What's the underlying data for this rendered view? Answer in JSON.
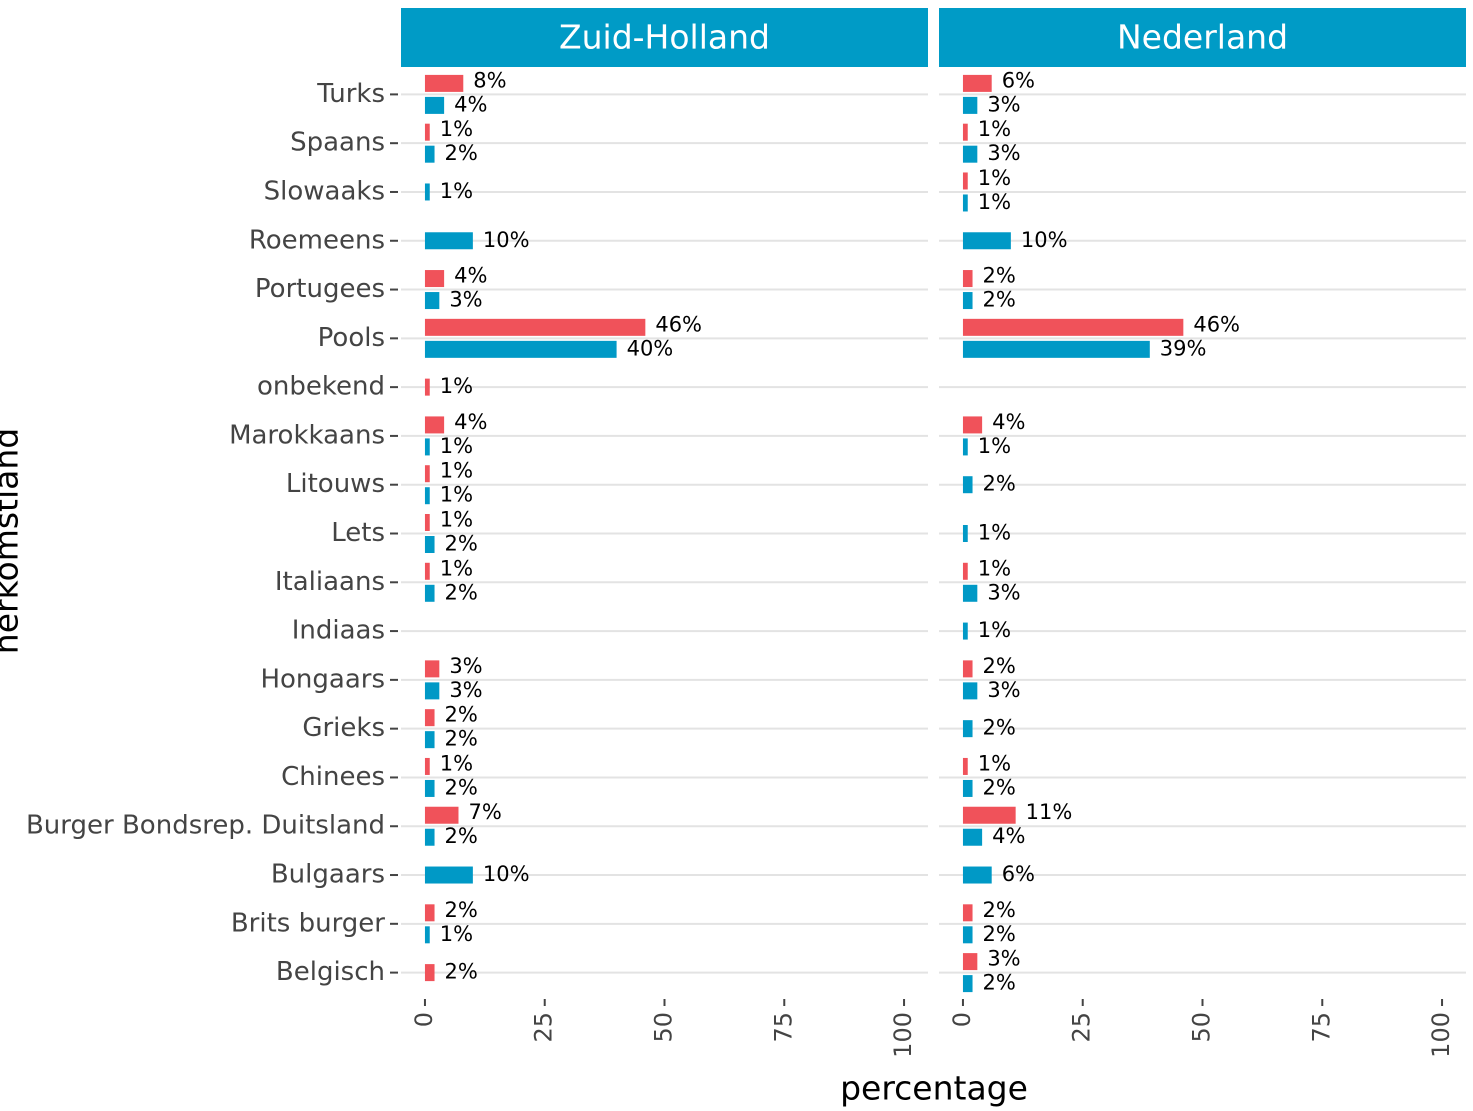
{
  "chart_data": {
    "type": "bar",
    "orientation": "horizontal",
    "x_label": "percentage",
    "y_label": "herkomstland",
    "categories": [
      "Turks",
      "Spaans",
      "Slowaaks",
      "Roemeens",
      "Portugees",
      "Pools",
      "onbekend",
      "Marokkaans",
      "Litouws",
      "Lets",
      "Italiaans",
      "Indiaas",
      "Hongaars",
      "Grieks",
      "Chinees",
      "Burger Bondsrep. Duitsland",
      "Bulgaars",
      "Brits burger",
      "Belgisch"
    ],
    "xlim": [
      0,
      100
    ],
    "xticks": [
      0,
      25,
      50,
      75,
      100
    ],
    "grid": true,
    "facets": [
      {
        "title": "Zuid-Holland",
        "series": [
          {
            "color": "#f0525a",
            "values": [
              8,
              1,
              null,
              null,
              4,
              46,
              1,
              4,
              1,
              1,
              1,
              null,
              3,
              2,
              1,
              7,
              null,
              2,
              2
            ],
            "value_labels": [
              "8%",
              "1%",
              null,
              null,
              "4%",
              "46%",
              "1%",
              "4%",
              "1%",
              "1%",
              "1%",
              null,
              "3%",
              "2%",
              "1%",
              "7%",
              null,
              "2%",
              "2%"
            ]
          },
          {
            "color": "#0099c6",
            "values": [
              4,
              2,
              1,
              10,
              3,
              40,
              null,
              1,
              1,
              2,
              2,
              null,
              3,
              2,
              2,
              2,
              10,
              1,
              null
            ],
            "value_labels": [
              "4%",
              "2%",
              "1%",
              "10%",
              "3%",
              "40%",
              null,
              "1%",
              "1%",
              "2%",
              "2%",
              null,
              "3%",
              "2%",
              "2%",
              "2%",
              "10%",
              "1%",
              null
            ]
          }
        ]
      },
      {
        "title": "Nederland",
        "series": [
          {
            "color": "#f0525a",
            "values": [
              6,
              1,
              1,
              null,
              2,
              46,
              null,
              4,
              null,
              null,
              1,
              null,
              2,
              null,
              1,
              11,
              null,
              2,
              3
            ],
            "value_labels": [
              "6%",
              "1%",
              "1%",
              null,
              "2%",
              "46%",
              null,
              "4%",
              null,
              null,
              "1%",
              null,
              "2%",
              null,
              "1%",
              "11%",
              null,
              "2%",
              "3%"
            ]
          },
          {
            "color": "#0099c6",
            "values": [
              3,
              3,
              1,
              10,
              2,
              39,
              null,
              1,
              2,
              1,
              3,
              1,
              3,
              2,
              2,
              4,
              6,
              2,
              2
            ],
            "value_labels": [
              "3%",
              "3%",
              "1%",
              "10%",
              "2%",
              "39%",
              null,
              "1%",
              "2%",
              "1%",
              "3%",
              "1%",
              "3%",
              "2%",
              "2%",
              "4%",
              "6%",
              "2%",
              "2%"
            ]
          }
        ]
      }
    ]
  }
}
